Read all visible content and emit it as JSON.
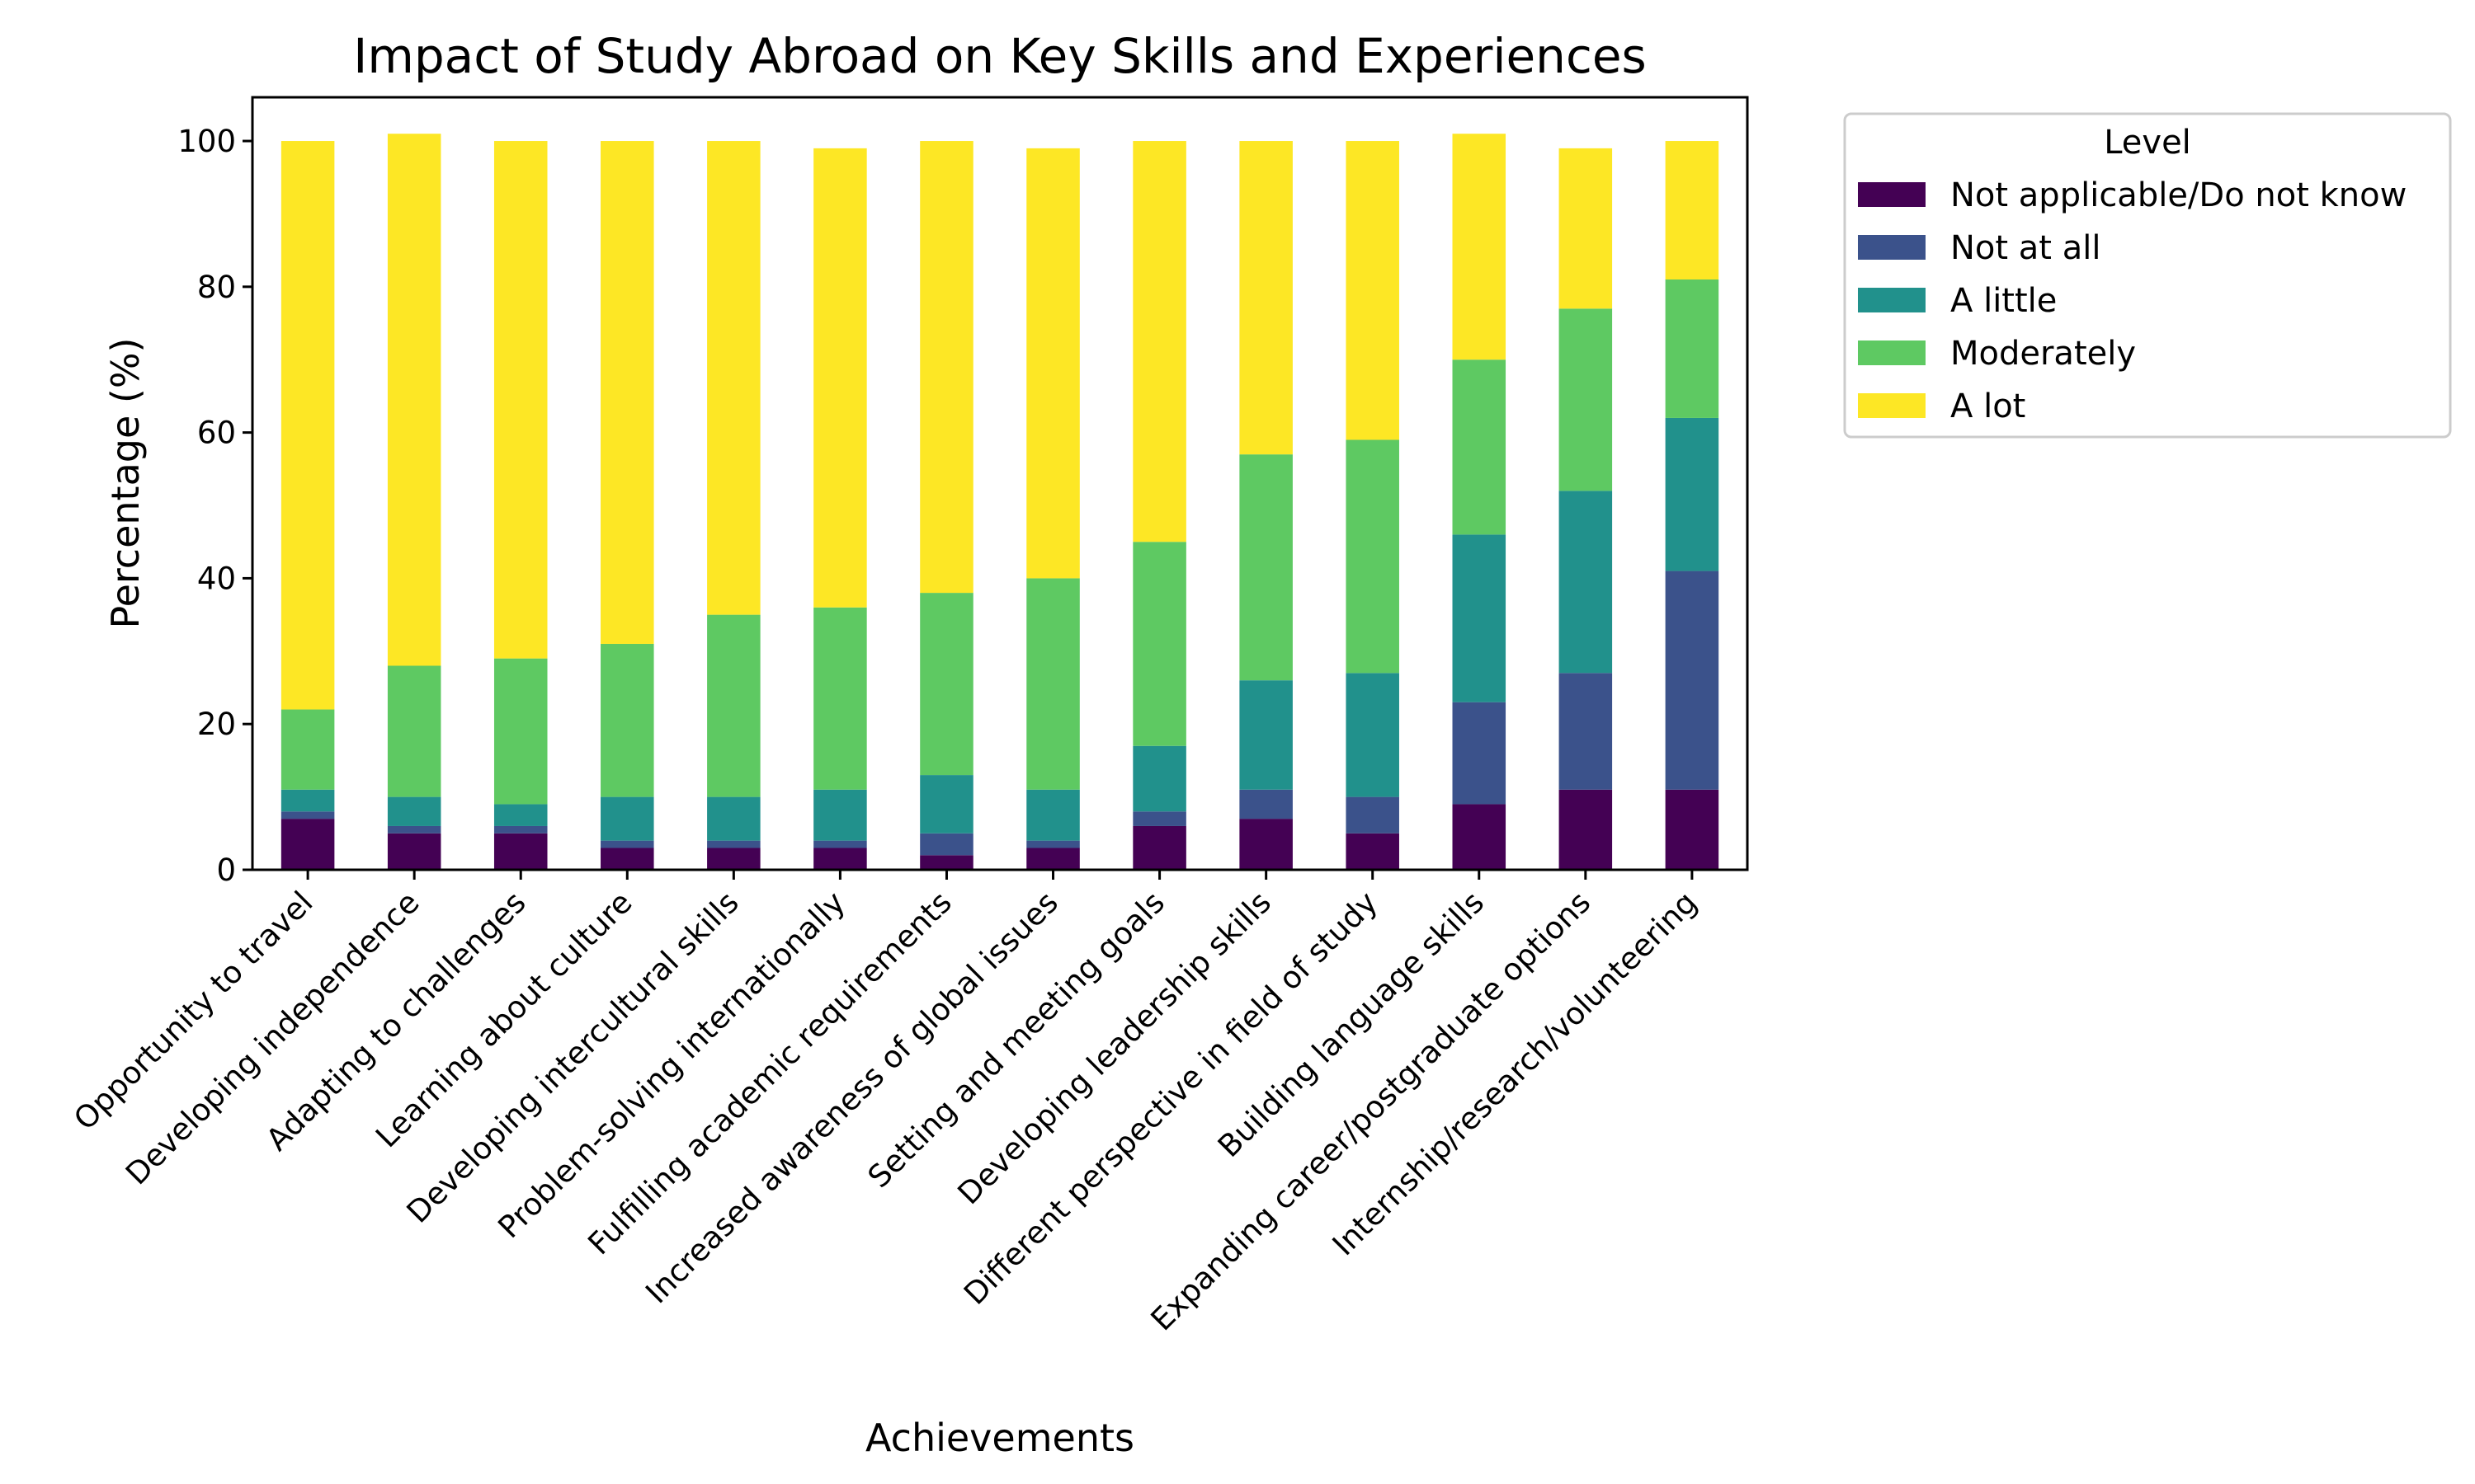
{
  "chart_data": {
    "type": "bar",
    "stacked": true,
    "title": "Impact of Study Abroad on Key Skills and Experiences",
    "xlabel": "Achievements",
    "ylabel": "Percentage (%)",
    "ylim": [
      0,
      106
    ],
    "yticks": [
      0,
      20,
      40,
      60,
      80,
      100
    ],
    "grid": false,
    "legend": {
      "title": "Level",
      "placement": "outside-top-right"
    },
    "categories": [
      "Opportunity to travel",
      "Developing independence",
      "Adapting to challenges",
      "Learning about culture",
      "Developing intercultural skills",
      "Problem-solving internationally",
      "Fulfilling academic requirements",
      "Increased awareness of global issues",
      "Setting and meeting goals",
      "Developing leadership skills",
      "Different perspective in field of study",
      "Building language skills",
      "Expanding career/postgraduate options",
      "Internship/research/volunteering"
    ],
    "series": [
      {
        "name": "Not applicable/Do not know",
        "color": "#440154",
        "values": [
          7,
          5,
          5,
          3,
          3,
          3,
          2,
          3,
          6,
          7,
          5,
          9,
          11,
          11
        ]
      },
      {
        "name": "Not at all",
        "color": "#3b528b",
        "values": [
          1,
          1,
          1,
          1,
          1,
          1,
          3,
          1,
          2,
          4,
          5,
          14,
          16,
          30
        ]
      },
      {
        "name": "A little",
        "color": "#21918c",
        "values": [
          3,
          4,
          3,
          6,
          6,
          7,
          8,
          7,
          9,
          15,
          17,
          23,
          25,
          21
        ]
      },
      {
        "name": "Moderately",
        "color": "#5ec962",
        "values": [
          11,
          18,
          20,
          21,
          25,
          25,
          25,
          29,
          28,
          31,
          32,
          24,
          25,
          19
        ]
      },
      {
        "name": "A lot",
        "color": "#fde725",
        "values": [
          78,
          73,
          71,
          69,
          65,
          63,
          62,
          59,
          55,
          43,
          41,
          31,
          22,
          19
        ]
      }
    ]
  }
}
